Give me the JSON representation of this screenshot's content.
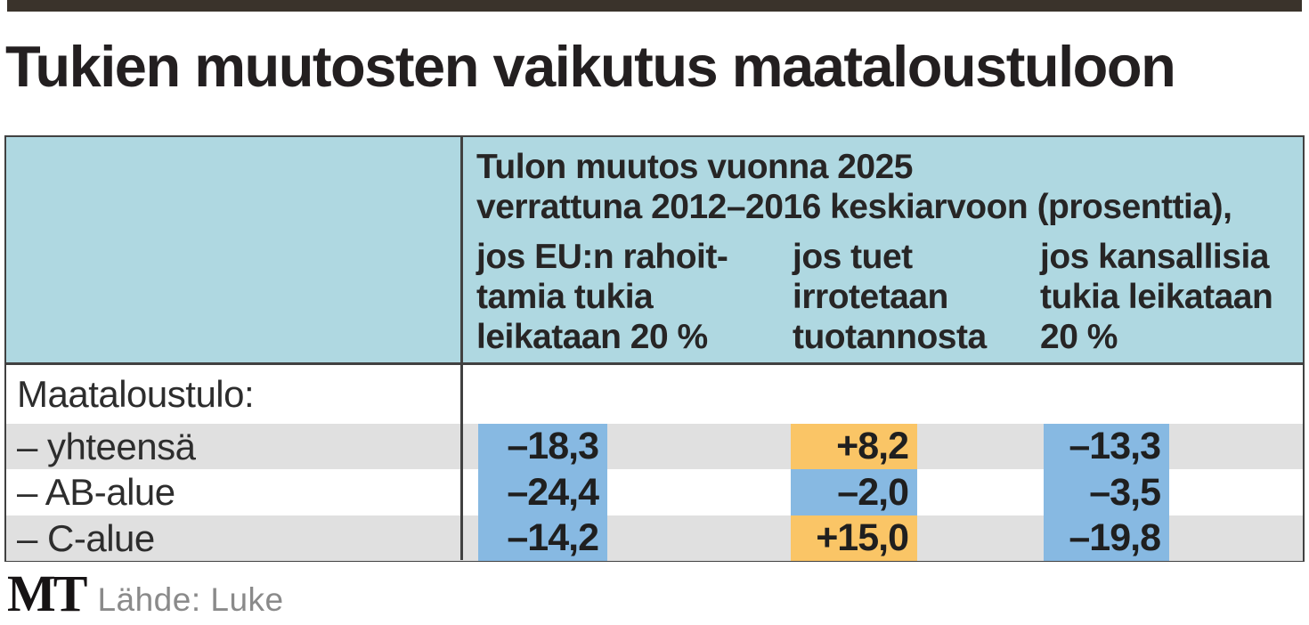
{
  "title": "Tukien muutosten vaikutus maataloustuloon",
  "table": {
    "header": {
      "line1": "Tulon muutos vuonna 2025",
      "line2": "verrattuna 2012–2016 keskiarvoon (prosenttia),",
      "columns": [
        {
          "lines": [
            "jos EU:n rahoit-",
            "tamia tukia",
            "leikataan 20 %"
          ]
        },
        {
          "lines": [
            "jos tuet",
            "irrotetaan",
            "tuotannosta"
          ]
        },
        {
          "lines": [
            "jos kansallisia",
            "tukia leikataan",
            "20 %"
          ]
        }
      ]
    },
    "group_label": "Maataloustulo:",
    "rows": [
      {
        "label": "– yhteensä",
        "values": [
          {
            "text": "–18,3"
          },
          {
            "text": "+8,2"
          },
          {
            "text": "–13,3"
          }
        ]
      },
      {
        "label": "– AB-alue",
        "values": [
          {
            "text": "–24,4"
          },
          {
            "text": "–2,0"
          },
          {
            "text": "–3,5"
          }
        ]
      },
      {
        "label": "– C-alue",
        "values": [
          {
            "text": "–14,2"
          },
          {
            "text": "+15,0"
          },
          {
            "text": "–19,8"
          }
        ]
      }
    ]
  },
  "footer": {
    "logo": "MT",
    "source": "Lähde: Luke"
  },
  "colors": {
    "topbar": "#3a332b",
    "header_bg": "#afd8e1",
    "row_alt_bg": "#e0e0e0",
    "negative_bg": "#87b9e2",
    "positive_bg": "#fac566",
    "border": "#414141"
  },
  "chart_data": {
    "type": "table",
    "title": "Tukien muutosten vaikutus maataloustuloon",
    "subtitle": "Tulon muutos vuonna 2025 verrattuna 2012–2016 keskiarvoon (prosenttia)",
    "row_group": "Maataloustulo:",
    "columns": [
      "jos EU:n rahoittamia tukia leikataan 20 %",
      "jos tuet irrotetaan tuotannosta",
      "jos kansallisia tukia leikataan 20 %"
    ],
    "rows": [
      {
        "label": "yhteensä",
        "values": [
          -18.3,
          8.2,
          -13.3
        ]
      },
      {
        "label": "AB-alue",
        "values": [
          -24.4,
          -2.0,
          -3.5
        ]
      },
      {
        "label": "C-alue",
        "values": [
          -14.2,
          15.0,
          -19.8
        ]
      }
    ],
    "highlight_rule": "negative values shaded blue, positive values shaded orange",
    "source": "Luke"
  }
}
